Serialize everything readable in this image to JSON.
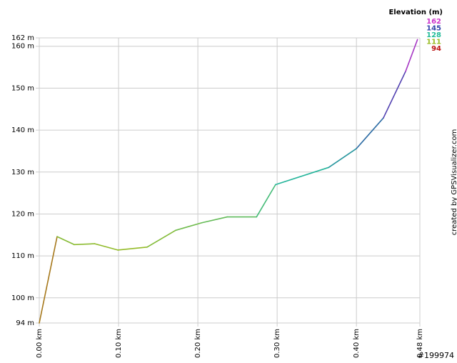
{
  "chart_data": {
    "type": "line",
    "x": [
      0,
      0.0225,
      0.044,
      0.07,
      0.099,
      0.136,
      0.172,
      0.205,
      0.237,
      0.274,
      0.298,
      0.365,
      0.4,
      0.434,
      0.462,
      0.477
    ],
    "values": [
      94,
      114.6,
      112.7,
      112.9,
      111.4,
      112.1,
      116.1,
      117.9,
      119.3,
      119.3,
      127.0,
      131.1,
      135.6,
      142.9,
      154.0,
      161.6
    ],
    "xlim": [
      0,
      0.48
    ],
    "ylim": [
      94,
      162
    ],
    "xticks": [
      {
        "value": 0,
        "label": "0.00 km"
      },
      {
        "value": 0.1,
        "label": "0.10 km"
      },
      {
        "value": 0.2,
        "label": "0.20 km"
      },
      {
        "value": 0.3,
        "label": "0.30 km"
      },
      {
        "value": 0.4,
        "label": "0.40 km"
      },
      {
        "value": 0.48,
        "label": "0.48 km"
      }
    ],
    "yticks": [
      {
        "value": 94,
        "label": "94 m"
      },
      {
        "value": 100,
        "label": "100 m"
      },
      {
        "value": 110,
        "label": "110 m"
      },
      {
        "value": 120,
        "label": "120 m"
      },
      {
        "value": 130,
        "label": "130 m"
      },
      {
        "value": 140,
        "label": "140 m"
      },
      {
        "value": 150,
        "label": "150 m"
      },
      {
        "value": 160,
        "label": "160 m"
      },
      {
        "value": 162,
        "label": "162 m"
      }
    ],
    "grid": true,
    "legend": {
      "title": "Elevation (m)",
      "entries": [
        {
          "value": 162,
          "color": "#cc33cc"
        },
        {
          "value": 145,
          "color": "#3344aa"
        },
        {
          "value": 128,
          "color": "#22bb99"
        },
        {
          "value": 111,
          "color": "#99bb22"
        },
        {
          "value": 94,
          "color": "#bb1111"
        }
      ]
    },
    "credit": "created by GPSVisualizer.com",
    "id_label": "#199974"
  }
}
